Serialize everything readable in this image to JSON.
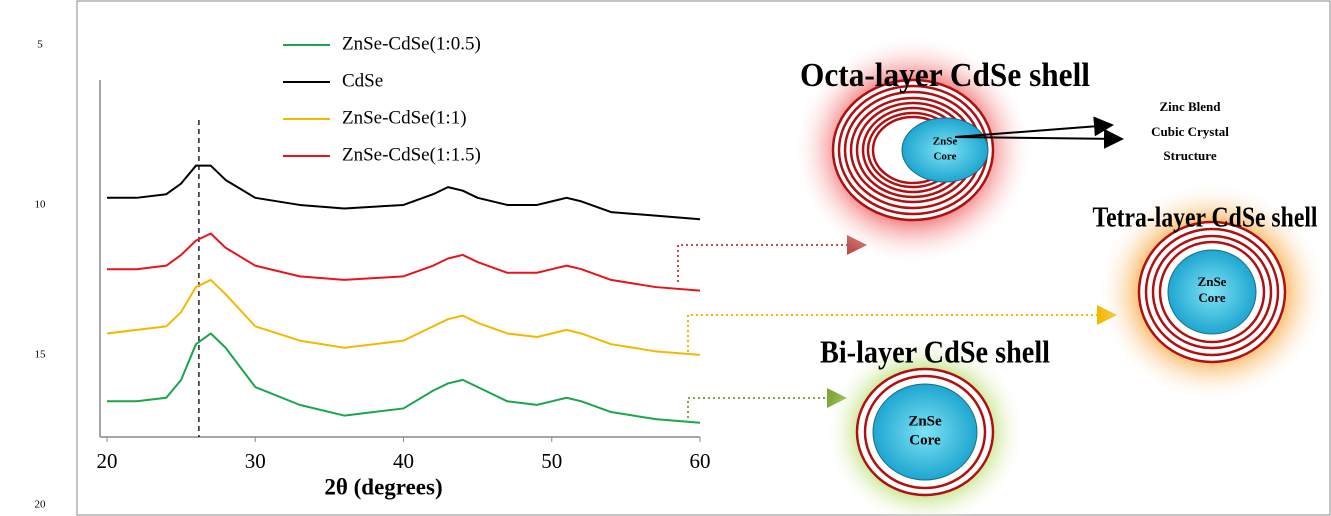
{
  "chart_data": {
    "type": "line",
    "xlabel": "2θ (degrees)",
    "x": [
      20,
      22,
      24,
      25,
      26,
      27,
      28,
      30,
      33,
      36,
      40,
      42,
      43,
      44,
      45,
      47,
      49,
      50,
      51,
      52,
      54,
      57,
      60
    ],
    "xlim": [
      20,
      60
    ],
    "xticks": [
      20,
      30,
      40,
      50,
      60
    ],
    "ylim": [
      0,
      10
    ],
    "reference_line": 26.2,
    "legend": "top",
    "series": [
      {
        "name": "ZnSe-CdSe(1:0.5)",
        "color": "#1aa64a",
        "values": [
          1.0,
          1.0,
          1.1,
          1.6,
          2.6,
          2.9,
          2.5,
          1.4,
          0.9,
          0.6,
          0.8,
          1.3,
          1.5,
          1.6,
          1.4,
          1.0,
          0.9,
          1.0,
          1.1,
          1.0,
          0.7,
          0.5,
          0.4
        ]
      },
      {
        "name": "CdSe",
        "color": "#000000",
        "values": [
          6.7,
          6.7,
          6.8,
          7.1,
          7.6,
          7.6,
          7.2,
          6.7,
          6.5,
          6.4,
          6.5,
          6.8,
          7.0,
          6.9,
          6.7,
          6.5,
          6.5,
          6.6,
          6.7,
          6.6,
          6.3,
          6.2,
          6.1
        ]
      },
      {
        "name": "ZnSe-CdSe(1:1)",
        "color": "#f5b800",
        "values": [
          2.9,
          3.0,
          3.1,
          3.5,
          4.2,
          4.4,
          4.0,
          3.1,
          2.7,
          2.5,
          2.7,
          3.1,
          3.3,
          3.4,
          3.2,
          2.9,
          2.8,
          2.9,
          3.0,
          2.9,
          2.6,
          2.4,
          2.3
        ]
      },
      {
        "name": "ZnSe-CdSe(1:1.5)",
        "color": "#e8141c",
        "values": [
          4.7,
          4.7,
          4.8,
          5.1,
          5.5,
          5.7,
          5.3,
          4.8,
          4.5,
          4.4,
          4.5,
          4.8,
          5.0,
          5.1,
          4.9,
          4.6,
          4.6,
          4.7,
          4.8,
          4.7,
          4.4,
          4.2,
          4.1
        ]
      }
    ]
  },
  "line_numbers": [
    "5",
    "10",
    "15",
    "20"
  ],
  "diagrams": [
    {
      "title": "Octa-layer CdSe shell",
      "core": [
        "ZnSe",
        "Core"
      ]
    },
    {
      "title": "Tetra-layer CdSe shell",
      "core": [
        "ZnSe",
        "Core"
      ]
    },
    {
      "title": "Bi-layer CdSe shell",
      "core": [
        "ZnSe",
        "Core"
      ]
    }
  ],
  "structure_note": [
    "Zinc Blend",
    "Cubic Crystal",
    "Structure"
  ]
}
